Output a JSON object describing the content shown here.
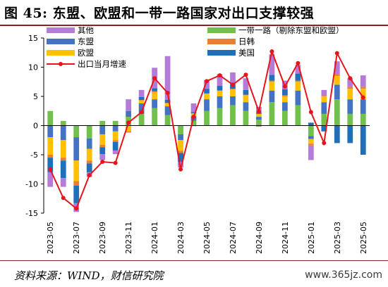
{
  "header": {
    "title": "图 45: 东盟、欧盟和一带一路国家对出口支撑较强"
  },
  "footer": {
    "source": "资料来源：WIND，财信研究院",
    "watermark": "www.365jz.com"
  },
  "colors": {
    "others": "#b57bd8",
    "asean": "#4472c4",
    "eu": "#ffc000",
    "belt_road": "#70c04a",
    "japan_korea": "#ed7d31",
    "usa": "#1f6fb9",
    "total_line": "#e8141c"
  },
  "chart_data": {
    "type": "bar",
    "stacked": true,
    "categories": [
      "2023-05",
      "2023-06",
      "2023-07",
      "2023-08",
      "2023-09",
      "2023-10",
      "2023-11",
      "2023-12",
      "2024-01",
      "2024-02",
      "2024-03",
      "2024-04",
      "2024-05",
      "2024-06",
      "2024-07",
      "2024-08",
      "2024-09",
      "2024-10",
      "2024-11",
      "2024-12",
      "2025-01",
      "2025-02",
      "2025-03",
      "2025-04",
      "2025-05"
    ],
    "x_tick_labels": [
      "2023-05",
      "2023-07",
      "2023-09",
      "2023-11",
      "2024-01",
      "2024-03",
      "2024-05",
      "2024-07",
      "2024-09",
      "2024-11",
      "2025-01",
      "2025-03",
      "2025-05"
    ],
    "ylim": [
      -15,
      15
    ],
    "yticks": [
      -15,
      -10,
      -5,
      0,
      5,
      10,
      15
    ],
    "legend_position": "top",
    "series": [
      {
        "name": "一带一路（剔除东盟和欧盟）",
        "key": "belt_road",
        "values": [
          2.5,
          0.8,
          -2.0,
          -2.2,
          0.8,
          0.8,
          1.5,
          2.0,
          3.0,
          1.8,
          -1.5,
          0.8,
          2.5,
          3.0,
          3.5,
          2.5,
          1.0,
          4.0,
          2.5,
          3.5,
          -1.8,
          2.0,
          4.5,
          2.0,
          2.0
        ]
      },
      {
        "name": "东盟",
        "key": "asean",
        "values": [
          -2.0,
          -2.5,
          -4.0,
          -1.8,
          -1.5,
          -1.0,
          1.0,
          1.8,
          1.5,
          1.5,
          -1.0,
          0.8,
          2.0,
          2.0,
          1.5,
          1.5,
          0.5,
          2.0,
          1.5,
          2.5,
          -0.5,
          2.0,
          2.5,
          2.5,
          2.5
        ]
      },
      {
        "name": "欧盟",
        "key": "eu",
        "values": [
          -3.0,
          -3.0,
          -3.5,
          -2.0,
          -1.8,
          -1.5,
          -1.0,
          0.5,
          1.2,
          0.5,
          -1.8,
          0.5,
          1.0,
          1.0,
          1.2,
          1.2,
          0.5,
          1.5,
          1.0,
          1.5,
          -0.8,
          1.0,
          1.5,
          1.8,
          1.8
        ]
      },
      {
        "name": "日韩",
        "key": "japan_korea",
        "values": [
          -0.5,
          -0.5,
          -0.8,
          -0.5,
          -0.4,
          -0.3,
          -0.2,
          0.1,
          0.2,
          0.1,
          -0.4,
          -0.1,
          0.0,
          0.0,
          0.1,
          0.1,
          -0.2,
          0.2,
          0.2,
          0.2,
          -0.3,
          0.1,
          0.3,
          0.3,
          0.3
        ]
      },
      {
        "name": "美国",
        "key": "usa",
        "values": [
          -2.5,
          -3.0,
          -3.0,
          -1.5,
          -1.2,
          -1.5,
          0.0,
          0.5,
          0.5,
          0.5,
          -1.5,
          0.2,
          0.8,
          0.8,
          0.8,
          0.8,
          0.2,
          1.0,
          1.0,
          1.2,
          0.5,
          -1.0,
          -3.0,
          -3.0,
          -5.0
        ]
      },
      {
        "name": "其他",
        "key": "others",
        "values": [
          -2.5,
          -1.5,
          -1.5,
          -0.8,
          -1.0,
          -0.6,
          2.0,
          1.2,
          3.5,
          7.5,
          -1.0,
          1.5,
          1.5,
          2.0,
          2.0,
          2.0,
          1.0,
          3.5,
          1.5,
          1.5,
          -2.5,
          1.0,
          2.2,
          1.5,
          2.0
        ]
      }
    ],
    "line_series": {
      "name": "出口当月增速",
      "values": [
        -7.5,
        -12.4,
        -14.2,
        -8.5,
        -6.2,
        -6.4,
        0.5,
        2.3,
        8.1,
        5.6,
        -7.5,
        1.5,
        7.6,
        8.6,
        7.0,
        8.7,
        2.4,
        12.7,
        6.7,
        10.7,
        2.3,
        -3.0,
        12.4,
        8.1,
        4.8
      ]
    },
    "grid": false
  }
}
